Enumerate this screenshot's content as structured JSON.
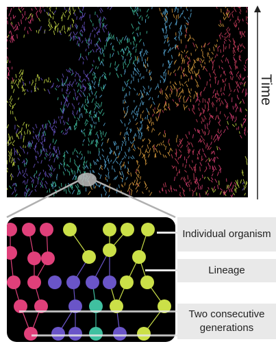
{
  "labels": {
    "time": "Time",
    "organism": "Individual organism",
    "lineage": "Lineage",
    "generations": "Two consecutive generations"
  },
  "colors": {
    "magenta": "#e0407a",
    "yellow_green": "#cbe048",
    "violet": "#6a55c8",
    "teal": "#40c0a0",
    "background": "#000000",
    "label_fill": "#e9e9e9",
    "pointer": "#e6e6e6"
  },
  "axis": {
    "direction": "up"
  }
}
